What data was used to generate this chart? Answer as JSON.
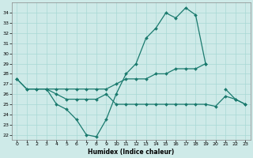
{
  "xlabel": "Humidex (Indice chaleur)",
  "x": [
    0,
    1,
    2,
    3,
    4,
    5,
    6,
    7,
    8,
    9,
    10,
    11,
    12,
    13,
    14,
    15,
    16,
    17,
    18,
    19,
    20,
    21,
    22,
    23
  ],
  "line1": [
    27.5,
    26.5,
    26.5,
    26.5,
    25.0,
    24.5,
    23.5,
    22.0,
    21.8,
    23.5,
    26.0,
    28.0,
    29.0,
    31.5,
    32.5,
    34.0,
    33.5,
    34.5,
    33.8,
    29.0,
    null,
    26.5,
    25.5,
    25.0
  ],
  "line2": [
    27.5,
    26.5,
    26.5,
    26.5,
    26.5,
    26.5,
    26.5,
    26.5,
    26.5,
    26.5,
    27.0,
    27.5,
    27.5,
    27.5,
    28.0,
    28.0,
    28.5,
    28.5,
    28.5,
    29.0,
    null,
    null,
    null,
    null
  ],
  "line3": [
    null,
    null,
    null,
    26.5,
    26.0,
    25.5,
    25.5,
    25.5,
    25.5,
    26.0,
    25.0,
    25.0,
    25.0,
    25.0,
    25.0,
    25.0,
    25.0,
    25.0,
    25.0,
    25.0,
    24.8,
    25.8,
    25.5,
    25.0
  ],
  "ylim": [
    21.5,
    35.0
  ],
  "xlim": [
    -0.5,
    23.5
  ],
  "yticks": [
    22,
    23,
    24,
    25,
    26,
    27,
    28,
    29,
    30,
    31,
    32,
    33,
    34
  ],
  "xticks": [
    0,
    1,
    2,
    3,
    4,
    5,
    6,
    7,
    8,
    9,
    10,
    11,
    12,
    13,
    14,
    15,
    16,
    17,
    18,
    19,
    20,
    21,
    22,
    23
  ],
  "line_color": "#1a7a6e",
  "bg_color": "#ceeae8",
  "grid_color": "#a8d8d4",
  "markersize": 2.0,
  "linewidth": 0.9
}
